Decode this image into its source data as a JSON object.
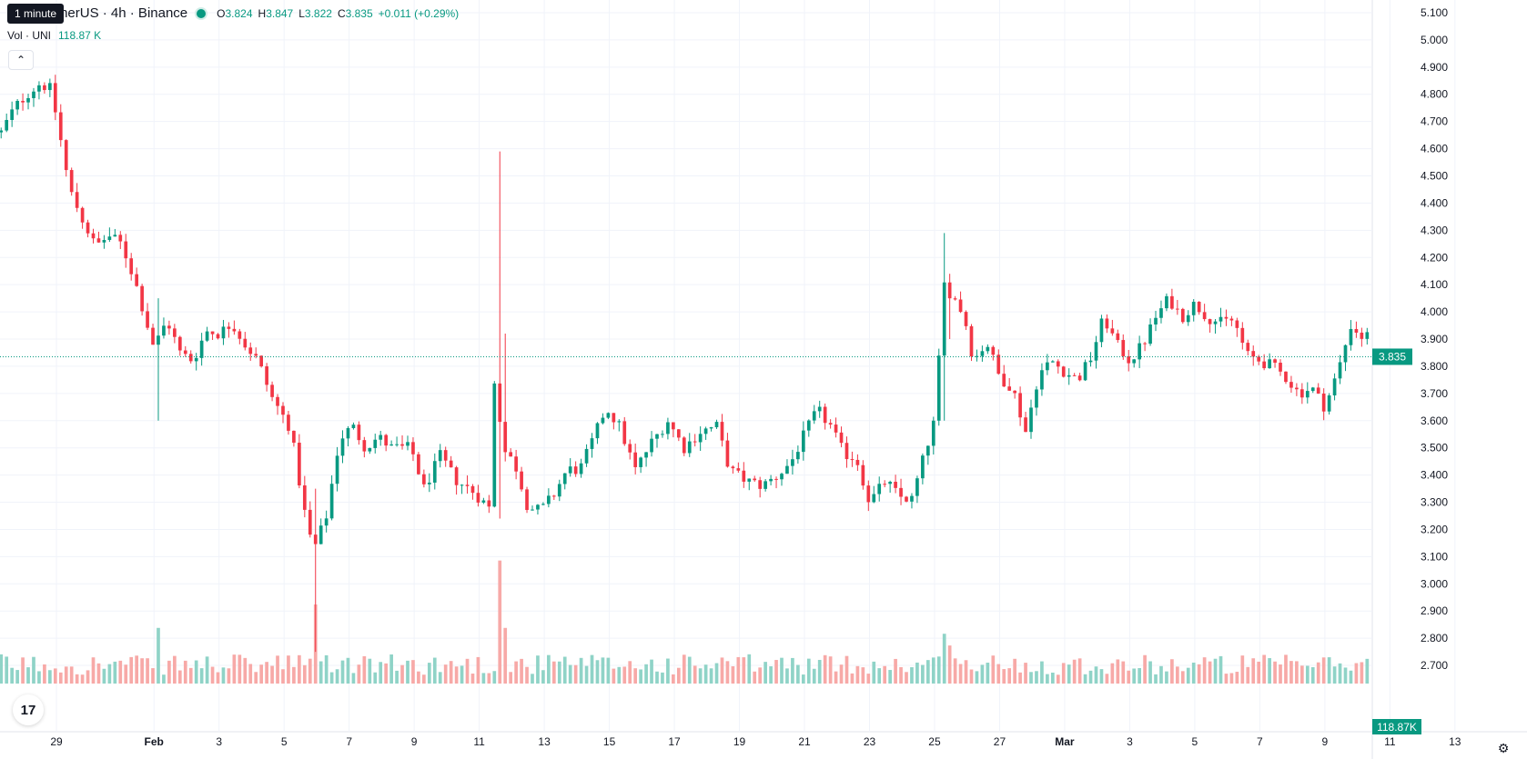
{
  "header": {
    "title": "UNI / TetherUS · 4h · Binance",
    "tooltip": "1 minute",
    "ohlc": [
      {
        "key": "O",
        "value": "3.824"
      },
      {
        "key": "H",
        "value": "3.847"
      },
      {
        "key": "L",
        "value": "3.822"
      },
      {
        "key": "C",
        "value": "3.835"
      }
    ],
    "change": "+0.011 (+0.29%)",
    "volume_label": "Vol · UNI",
    "volume_value": "118.87 K",
    "collapse_icon": "chevron-up-icon",
    "status_color": "#089981"
  },
  "colors": {
    "up": "#089981",
    "down": "#f23645",
    "up_volume": "#8fd3c7",
    "down_volume": "#f7a9a7",
    "grid": "#f0f3fa",
    "text": "#131722"
  },
  "chart_data": {
    "type": "candlestick",
    "ylim": [
      2.65,
      5.12
    ],
    "y_ticks": [
      "2.700",
      "2.800",
      "2.900",
      "3.000",
      "3.100",
      "3.200",
      "3.300",
      "3.400",
      "3.500",
      "3.600",
      "3.700",
      "3.800",
      "3.900",
      "4.000",
      "4.100",
      "4.200",
      "4.300",
      "4.400",
      "4.500",
      "4.600",
      "4.700",
      "4.800",
      "4.900",
      "5.000",
      "5.100"
    ],
    "x_labels": [
      {
        "label": "29",
        "day": 0
      },
      {
        "label": "Feb",
        "day": 3
      },
      {
        "label": "3",
        "day": 5
      },
      {
        "label": "5",
        "day": 7
      },
      {
        "label": "7",
        "day": 9
      },
      {
        "label": "9",
        "day": 11
      },
      {
        "label": "11",
        "day": 13
      },
      {
        "label": "13",
        "day": 15
      },
      {
        "label": "15",
        "day": 17
      },
      {
        "label": "17",
        "day": 19
      },
      {
        "label": "19",
        "day": 21
      },
      {
        "label": "21",
        "day": 23
      },
      {
        "label": "23",
        "day": 25
      },
      {
        "label": "25",
        "day": 27
      },
      {
        "label": "27",
        "day": 29
      },
      {
        "label": "Mar",
        "day": 31
      },
      {
        "label": "3",
        "day": 33
      },
      {
        "label": "5",
        "day": 35
      },
      {
        "label": "7",
        "day": 37
      },
      {
        "label": "9",
        "day": 39
      },
      {
        "label": "11",
        "day": 41
      },
      {
        "label": "13",
        "day": 43
      }
    ],
    "last_price": "3.835",
    "last_volume": "118.87K",
    "volume_max": 4500,
    "anchors": [
      {
        "day": -1.7,
        "close": 4.66
      },
      {
        "day": -1.3,
        "close": 4.75
      },
      {
        "day": -0.9,
        "close": 4.8
      },
      {
        "day": -0.5,
        "close": 4.84
      },
      {
        "day": -0.2,
        "close": 4.82
      },
      {
        "day": 0.0,
        "close": 4.72
      },
      {
        "day": 0.4,
        "close": 4.45
      },
      {
        "day": 0.8,
        "close": 4.34
      },
      {
        "day": 1.2,
        "close": 4.24
      },
      {
        "day": 1.6,
        "close": 4.28
      },
      {
        "day": 2.0,
        "close": 4.25
      },
      {
        "day": 2.4,
        "close": 4.12
      },
      {
        "day": 2.8,
        "close": 3.95
      },
      {
        "day": 3.0,
        "close": 3.87
      },
      {
        "day": 3.4,
        "close": 3.97
      },
      {
        "day": 3.8,
        "close": 3.85
      },
      {
        "day": 4.2,
        "close": 3.82
      },
      {
        "day": 4.6,
        "close": 3.93
      },
      {
        "day": 5.0,
        "close": 3.92
      },
      {
        "day": 5.4,
        "close": 3.96
      },
      {
        "day": 5.8,
        "close": 3.88
      },
      {
        "day": 6.2,
        "close": 3.82
      },
      {
        "day": 6.6,
        "close": 3.69
      },
      {
        "day": 7.2,
        "close": 3.57
      },
      {
        "day": 7.6,
        "close": 3.28
      },
      {
        "day": 7.9,
        "close": 3.12
      },
      {
        "day": 8.3,
        "close": 3.25
      },
      {
        "day": 8.7,
        "close": 3.53
      },
      {
        "day": 9.1,
        "close": 3.58
      },
      {
        "day": 9.5,
        "close": 3.5
      },
      {
        "day": 9.9,
        "close": 3.54
      },
      {
        "day": 10.3,
        "close": 3.5
      },
      {
        "day": 10.9,
        "close": 3.5
      },
      {
        "day": 11.3,
        "close": 3.35
      },
      {
        "day": 11.8,
        "close": 3.47
      },
      {
        "day": 12.3,
        "close": 3.38
      },
      {
        "day": 12.8,
        "close": 3.34
      },
      {
        "day": 13.3,
        "close": 3.28
      },
      {
        "day": 13.5,
        "close": 3.84
      },
      {
        "day": 13.7,
        "close": 3.5
      },
      {
        "day": 14.1,
        "close": 3.44
      },
      {
        "day": 14.5,
        "close": 3.28
      },
      {
        "day": 14.9,
        "close": 3.27
      },
      {
        "day": 15.3,
        "close": 3.33
      },
      {
        "day": 15.7,
        "close": 3.42
      },
      {
        "day": 16.1,
        "close": 3.42
      },
      {
        "day": 16.5,
        "close": 3.53
      },
      {
        "day": 16.9,
        "close": 3.65
      },
      {
        "day": 17.3,
        "close": 3.58
      },
      {
        "day": 17.8,
        "close": 3.42
      },
      {
        "day": 18.3,
        "close": 3.52
      },
      {
        "day": 18.8,
        "close": 3.6
      },
      {
        "day": 19.3,
        "close": 3.5
      },
      {
        "day": 19.8,
        "close": 3.56
      },
      {
        "day": 20.3,
        "close": 3.58
      },
      {
        "day": 20.7,
        "close": 3.42
      },
      {
        "day": 21.2,
        "close": 3.38
      },
      {
        "day": 21.7,
        "close": 3.36
      },
      {
        "day": 22.2,
        "close": 3.4
      },
      {
        "day": 22.6,
        "close": 3.45
      },
      {
        "day": 23.0,
        "close": 3.55
      },
      {
        "day": 23.4,
        "close": 3.64
      },
      {
        "day": 23.8,
        "close": 3.58
      },
      {
        "day": 24.2,
        "close": 3.48
      },
      {
        "day": 24.6,
        "close": 3.46
      },
      {
        "day": 25.0,
        "close": 3.3
      },
      {
        "day": 25.5,
        "close": 3.38
      },
      {
        "day": 25.9,
        "close": 3.32
      },
      {
        "day": 26.3,
        "close": 3.31
      },
      {
        "day": 26.7,
        "close": 3.48
      },
      {
        "day": 27.0,
        "close": 3.6
      },
      {
        "day": 27.3,
        "close": 4.1
      },
      {
        "day": 27.6,
        "close": 4.05
      },
      {
        "day": 27.9,
        "close": 3.99
      },
      {
        "day": 28.2,
        "close": 3.82
      },
      {
        "day": 28.6,
        "close": 3.89
      },
      {
        "day": 29.0,
        "close": 3.76
      },
      {
        "day": 29.4,
        "close": 3.72
      },
      {
        "day": 29.8,
        "close": 3.56
      },
      {
        "day": 30.2,
        "close": 3.77
      },
      {
        "day": 30.6,
        "close": 3.82
      },
      {
        "day": 31.0,
        "close": 3.78
      },
      {
        "day": 31.4,
        "close": 3.75
      },
      {
        "day": 31.8,
        "close": 3.83
      },
      {
        "day": 32.2,
        "close": 3.98
      },
      {
        "day": 32.6,
        "close": 3.88
      },
      {
        "day": 33.0,
        "close": 3.82
      },
      {
        "day": 33.4,
        "close": 3.88
      },
      {
        "day": 33.8,
        "close": 3.98
      },
      {
        "day": 34.2,
        "close": 4.05
      },
      {
        "day": 34.6,
        "close": 3.98
      },
      {
        "day": 35.0,
        "close": 4.03
      },
      {
        "day": 35.4,
        "close": 3.98
      },
      {
        "day": 35.8,
        "close": 3.96
      },
      {
        "day": 36.2,
        "close": 3.97
      },
      {
        "day": 36.6,
        "close": 3.84
      },
      {
        "day": 37.0,
        "close": 3.82
      },
      {
        "day": 37.4,
        "close": 3.8
      },
      {
        "day": 37.8,
        "close": 3.76
      },
      {
        "day": 38.2,
        "close": 3.7
      },
      {
        "day": 38.6,
        "close": 3.72
      },
      {
        "day": 39.0,
        "close": 3.65
      },
      {
        "day": 39.4,
        "close": 3.78
      },
      {
        "day": 39.8,
        "close": 3.95
      },
      {
        "day": 40.2,
        "close": 3.9
      },
      {
        "day": 40.6,
        "close": 3.95
      },
      {
        "day": 41.0,
        "close": 3.85
      },
      {
        "day": 41.4,
        "close": 3.83
      },
      {
        "day": 41.5,
        "close": 3.835
      }
    ],
    "spikes": [
      {
        "day": 3.1,
        "low": 3.6,
        "high": 4.05,
        "volume": 1900
      },
      {
        "day": 7.9,
        "low": 3.08,
        "high": 3.35,
        "volume": 2900
      },
      {
        "day": 8.0,
        "low": 2.75,
        "high": 3.3,
        "volume": 2700
      },
      {
        "day": 13.55,
        "low": 3.24,
        "high": 4.59,
        "volume": 4200
      },
      {
        "day": 13.75,
        "low": 3.45,
        "high": 3.92,
        "volume": 1900
      },
      {
        "day": 27.25,
        "low": 3.6,
        "high": 4.29,
        "volume": 1700
      },
      {
        "day": 27.5,
        "low": 3.9,
        "high": 4.14,
        "volume": 1300
      }
    ]
  }
}
